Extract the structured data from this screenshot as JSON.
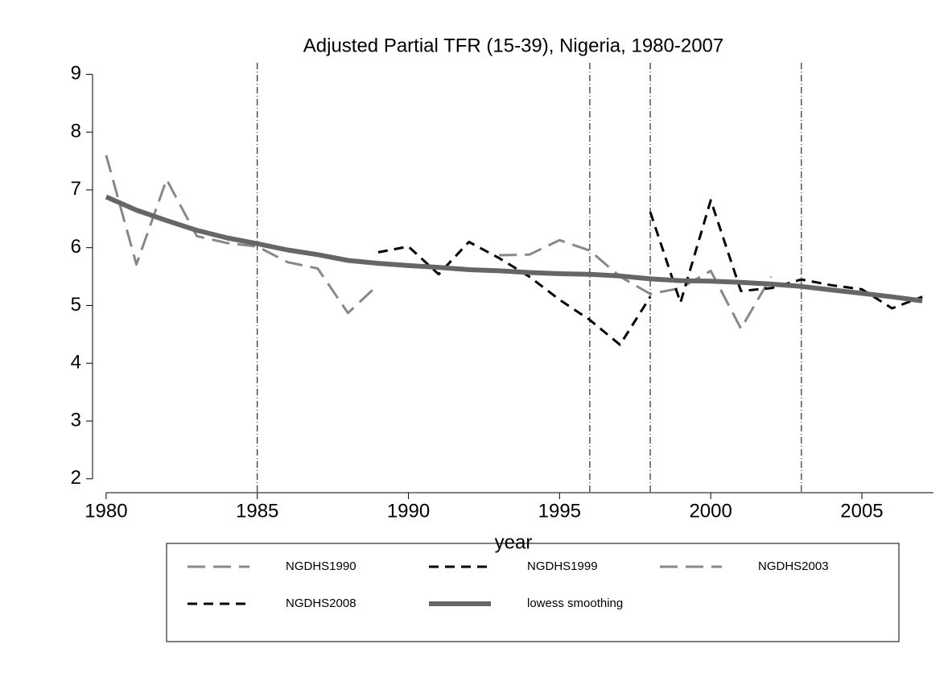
{
  "chart_data": {
    "type": "line",
    "title": "Adjusted Partial TFR (15-39), Nigeria, 1980-2007",
    "xlabel": "year",
    "x": [
      1980,
      1981,
      1982,
      1983,
      1984,
      1985,
      1986,
      1987,
      1988,
      1989,
      1990,
      1991,
      1992,
      1993,
      1994,
      1995,
      1996,
      1997,
      1998,
      1999,
      2000,
      2001,
      2002,
      2003,
      2004,
      2005,
      2006,
      2007
    ],
    "series": [
      {
        "name": "NGDHS1990",
        "color": "#888888",
        "dash": "22 10",
        "width": 3,
        "values": [
          7.6,
          5.71,
          7.18,
          6.2,
          6.08,
          6.02,
          5.75,
          5.64,
          4.87,
          5.36,
          null,
          null,
          null,
          null,
          null,
          null,
          null,
          null,
          null,
          null,
          null,
          null,
          null,
          null,
          null,
          null,
          null,
          null
        ]
      },
      {
        "name": "NGDHS1999",
        "color": "#000000",
        "dash": "12 8",
        "width": 3,
        "values": [
          null,
          null,
          null,
          null,
          null,
          null,
          null,
          null,
          null,
          5.92,
          6.02,
          5.54,
          6.1,
          5.82,
          5.5,
          5.1,
          4.75,
          4.32,
          5.15,
          null,
          null,
          null,
          null,
          null,
          null,
          null,
          null,
          null
        ]
      },
      {
        "name": "NGDHS2003",
        "color": "#888888",
        "dash": "22 10",
        "width": 3,
        "values": [
          null,
          null,
          null,
          null,
          null,
          null,
          null,
          null,
          null,
          null,
          null,
          null,
          null,
          5.87,
          5.88,
          6.13,
          5.95,
          5.5,
          5.2,
          5.3,
          5.6,
          4.6,
          5.5,
          null,
          null,
          null,
          null,
          null
        ]
      },
      {
        "name": "NGDHS2008",
        "color": "#000000",
        "dash": "12 8",
        "width": 3,
        "values": [
          null,
          null,
          null,
          null,
          null,
          null,
          null,
          null,
          null,
          null,
          null,
          null,
          null,
          null,
          null,
          null,
          null,
          null,
          6.62,
          5.05,
          6.82,
          5.25,
          5.3,
          5.45,
          5.35,
          5.28,
          4.95,
          5.15
        ]
      },
      {
        "name": "lowess smoothing",
        "color": "#666666",
        "dash": "none",
        "width": 6,
        "values": [
          6.88,
          6.65,
          6.47,
          6.3,
          6.17,
          6.07,
          5.96,
          5.88,
          5.78,
          5.73,
          5.69,
          5.66,
          5.62,
          5.6,
          5.57,
          5.55,
          5.54,
          5.51,
          5.46,
          5.43,
          5.42,
          5.4,
          5.37,
          5.33,
          5.27,
          5.21,
          5.15,
          5.08
        ]
      }
    ],
    "vlines": [
      1985,
      1996,
      1998,
      2003
    ],
    "xlim": [
      1979.55,
      2007.37
    ],
    "ylim": [
      1.76,
      9.2
    ],
    "xticks": [
      1980,
      1985,
      1990,
      1995,
      2000,
      2005
    ],
    "yticks": [
      2,
      3,
      4,
      5,
      6,
      7,
      8,
      9
    ]
  }
}
